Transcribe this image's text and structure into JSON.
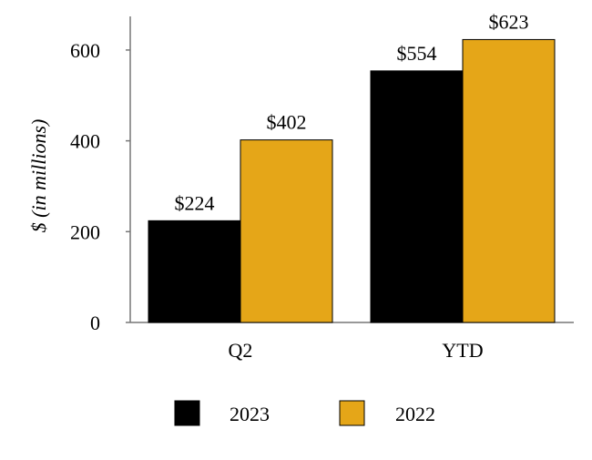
{
  "chart_data": {
    "type": "bar",
    "categories": [
      "Q2",
      "YTD"
    ],
    "series": [
      {
        "name": "2023",
        "values": [
          224,
          554
        ],
        "labels": [
          "$224",
          "$554"
        ],
        "color": "#000000"
      },
      {
        "name": "2022",
        "values": [
          402,
          623
        ],
        "labels": [
          "$402",
          "$623"
        ],
        "color": "#E5A618"
      }
    ],
    "title": "",
    "xlabel": "",
    "ylabel": "$ (in millions)",
    "ylim": [
      0,
      680
    ],
    "yticks": [
      0,
      200,
      400,
      600
    ],
    "ytick_labels": [
      "0",
      "200",
      "400",
      "600"
    ],
    "grid": false,
    "legend_position": "bottom"
  }
}
